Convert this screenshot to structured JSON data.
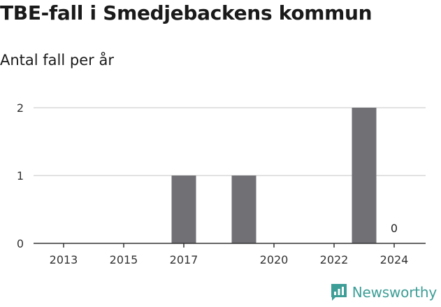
{
  "title": "TBE-fall i Smedjebackens kommun",
  "subtitle": "Antal fall per år",
  "brand": {
    "name": "Newsworthy",
    "color": "#3d9e97"
  },
  "colors": {
    "bar": "#717075",
    "grid": "#d9d9d9",
    "axis": "#333333"
  },
  "chart_data": {
    "type": "bar",
    "categories": [
      "2013",
      "2014",
      "2015",
      "2016",
      "2017",
      "2018",
      "2019",
      "2020",
      "2021",
      "2022",
      "2023",
      "2024"
    ],
    "values": [
      0,
      0,
      0,
      0,
      1,
      0,
      1,
      0,
      0,
      0,
      2,
      0
    ],
    "x_tick_labels": [
      "2013",
      "2015",
      "2017",
      "2020",
      "2022",
      "2024"
    ],
    "y_ticks": [
      0,
      1,
      2
    ],
    "ylim": [
      0,
      2
    ],
    "data_labels": [
      {
        "category": "2024",
        "text": "0"
      }
    ],
    "grid": true
  }
}
